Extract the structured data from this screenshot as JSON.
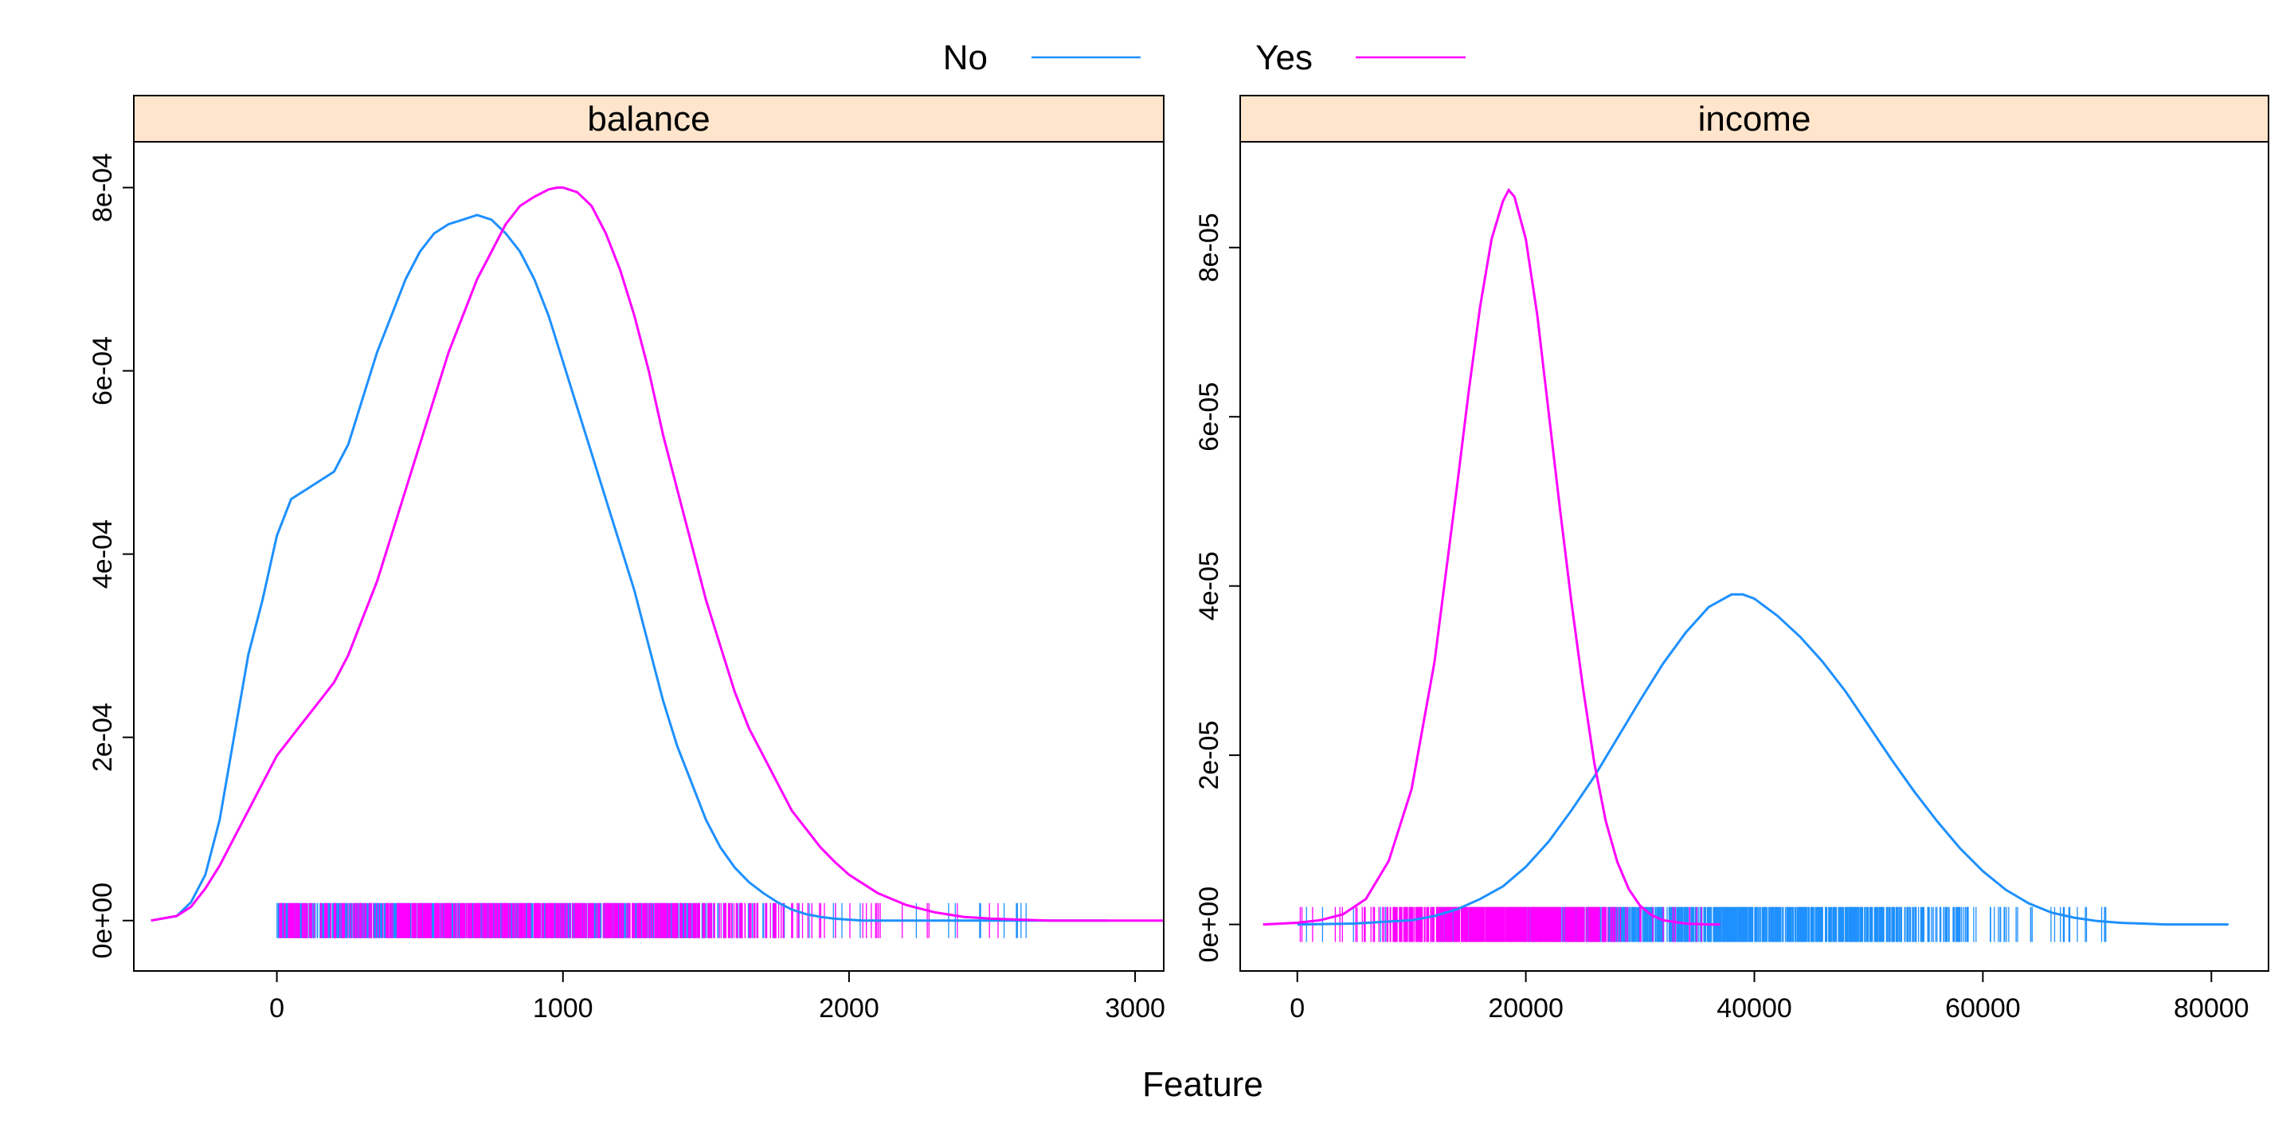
{
  "chart_data": {
    "type": "line",
    "xlabel": "Feature",
    "legend": {
      "placement": "top-center",
      "entries": [
        {
          "name": "No",
          "color": "#1E90FF"
        },
        {
          "name": "Yes",
          "color": "#FF00FF"
        }
      ]
    },
    "strip_color": "#FFE5CC",
    "panels": [
      {
        "title": "balance",
        "xlim": [
          -500,
          3100
        ],
        "ylim": [
          -5.5e-05,
          0.00085
        ],
        "xticks": [
          0,
          1000,
          2000,
          3000
        ],
        "xtick_labels": [
          "0",
          "1000",
          "2000",
          "3000"
        ],
        "yticks": [
          0,
          0.0002,
          0.0004,
          0.0006,
          0.0008
        ],
        "ytick_labels": [
          "0e+00",
          "2e-04",
          "4e-04",
          "6e-04",
          "8e-04"
        ],
        "rug_range": [
          0,
          2660
        ],
        "series": [
          {
            "name": "No",
            "x": [
              -440,
              -350,
              -300,
              -250,
              -200,
              -150,
              -100,
              -50,
              0,
              50,
              100,
              150,
              200,
              250,
              300,
              350,
              400,
              450,
              500,
              550,
              600,
              650,
              700,
              720,
              750,
              800,
              850,
              900,
              950,
              1000,
              1050,
              1100,
              1150,
              1200,
              1250,
              1300,
              1350,
              1400,
              1450,
              1500,
              1550,
              1600,
              1650,
              1700,
              1750,
              1800,
              1850,
              1900,
              1950,
              2000,
              2050,
              2100,
              2150,
              2200,
              2300,
              2400,
              2500,
              2600,
              2700,
              2800,
              2900
            ],
            "y": [
              0,
              5e-06,
              2e-05,
              5e-05,
              0.00011,
              0.0002,
              0.00029,
              0.00035,
              0.00042,
              0.00046,
              0.00047,
              0.00048,
              0.00049,
              0.00052,
              0.00057,
              0.00062,
              0.00066,
              0.0007,
              0.00073,
              0.00075,
              0.00076,
              0.000765,
              0.00077,
              0.000768,
              0.000765,
              0.00075,
              0.00073,
              0.0007,
              0.00066,
              0.00061,
              0.00056,
              0.00051,
              0.00046,
              0.00041,
              0.00036,
              0.0003,
              0.00024,
              0.00019,
              0.00015,
              0.00011,
              8e-05,
              5.8e-05,
              4.2e-05,
              3e-05,
              2e-05,
              1.2e-05,
              7e-06,
              4e-06,
              2e-06,
              1e-06,
              0,
              0,
              0,
              0,
              0,
              0,
              0,
              0,
              0,
              0,
              0
            ]
          },
          {
            "name": "Yes",
            "x": [
              -440,
              -350,
              -300,
              -250,
              -200,
              -150,
              -100,
              -50,
              0,
              50,
              100,
              150,
              200,
              250,
              300,
              350,
              400,
              450,
              500,
              550,
              600,
              650,
              700,
              750,
              800,
              850,
              900,
              950,
              980,
              1000,
              1050,
              1100,
              1150,
              1200,
              1250,
              1300,
              1350,
              1400,
              1450,
              1500,
              1550,
              1600,
              1650,
              1700,
              1750,
              1800,
              1850,
              1900,
              1950,
              2000,
              2100,
              2200,
              2300,
              2400,
              2500,
              2600,
              2700,
              2800,
              2900,
              3000,
              3100
            ],
            "y": [
              0,
              5e-06,
              1.5e-05,
              3.5e-05,
              6e-05,
              9e-05,
              0.00012,
              0.00015,
              0.00018,
              0.0002,
              0.00022,
              0.00024,
              0.00026,
              0.00029,
              0.00033,
              0.00037,
              0.00042,
              0.00047,
              0.00052,
              0.00057,
              0.00062,
              0.00066,
              0.0007,
              0.00073,
              0.00076,
              0.00078,
              0.00079,
              0.000798,
              0.0008,
              0.0008,
              0.000795,
              0.00078,
              0.00075,
              0.00071,
              0.00066,
              0.0006,
              0.00053,
              0.00047,
              0.00041,
              0.00035,
              0.0003,
              0.00025,
              0.00021,
              0.00018,
              0.00015,
              0.00012,
              0.0001,
              8e-05,
              6.4e-05,
              5e-05,
              3e-05,
              1.7e-05,
              9e-06,
              4e-06,
              2e-06,
              1e-06,
              0,
              0,
              0,
              0,
              0
            ]
          }
        ]
      },
      {
        "title": "income",
        "xlim": [
          -5000,
          85000
        ],
        "ylim": [
          -5.5e-06,
          9.25e-05
        ],
        "xticks": [
          0,
          20000,
          40000,
          60000,
          80000
        ],
        "xtick_labels": [
          "0",
          "20000",
          "40000",
          "60000",
          "80000"
        ],
        "yticks": [
          0,
          2e-05,
          4e-05,
          6e-05,
          8e-05
        ],
        "ytick_labels": [
          "0e+00",
          "2e-05",
          "4e-05",
          "6e-05",
          "8e-05"
        ],
        "rug_range": [
          0,
          73600
        ],
        "series": [
          {
            "name": "No",
            "x": [
              0,
              5000,
              10000,
              12000,
              14000,
              16000,
              18000,
              20000,
              22000,
              24000,
              26000,
              28000,
              30000,
              32000,
              34000,
              36000,
              38000,
              39000,
              40000,
              42000,
              44000,
              46000,
              48000,
              50000,
              52000,
              54000,
              56000,
              58000,
              60000,
              62000,
              64000,
              66000,
              68000,
              70000,
              72000,
              74000,
              76000,
              78000,
              80000,
              81500
            ],
            "y": [
              0,
              1e-07,
              5e-07,
              1e-06,
              1.8e-06,
              3e-06,
              4.5e-06,
              6.8e-06,
              9.8e-06,
              1.35e-05,
              1.75e-05,
              2.2e-05,
              2.65e-05,
              3.08e-05,
              3.45e-05,
              3.75e-05,
              3.9e-05,
              3.9e-05,
              3.85e-05,
              3.65e-05,
              3.4e-05,
              3.1e-05,
              2.75e-05,
              2.35e-05,
              1.95e-05,
              1.57e-05,
              1.22e-05,
              9e-06,
              6.3e-06,
              4.1e-06,
              2.5e-06,
              1.4e-06,
              8e-07,
              4e-07,
              2e-07,
              1e-07,
              0,
              0,
              0,
              0
            ]
          },
          {
            "name": "Yes",
            "x": [
              -3000,
              0,
              2000,
              4000,
              6000,
              8000,
              10000,
              12000,
              14000,
              15000,
              16000,
              17000,
              18000,
              18500,
              19000,
              20000,
              21000,
              22000,
              23000,
              24000,
              25000,
              26000,
              27000,
              28000,
              29000,
              30000,
              31000,
              32000,
              34000,
              36000,
              37000
            ],
            "y": [
              0,
              2e-07,
              5e-07,
              1.2e-06,
              3e-06,
              7.5e-06,
              1.6e-05,
              3.1e-05,
              5.2e-05,
              6.3e-05,
              7.3e-05,
              8.1e-05,
              8.55e-05,
              8.68e-05,
              8.6e-05,
              8.1e-05,
              7.2e-05,
              6.05e-05,
              4.9e-05,
              3.8e-05,
              2.8e-05,
              1.9e-05,
              1.22e-05,
              7.4e-06,
              4.2e-06,
              2.2e-06,
              1.1e-06,
              5e-07,
              1e-07,
              0,
              0
            ]
          }
        ]
      }
    ]
  }
}
